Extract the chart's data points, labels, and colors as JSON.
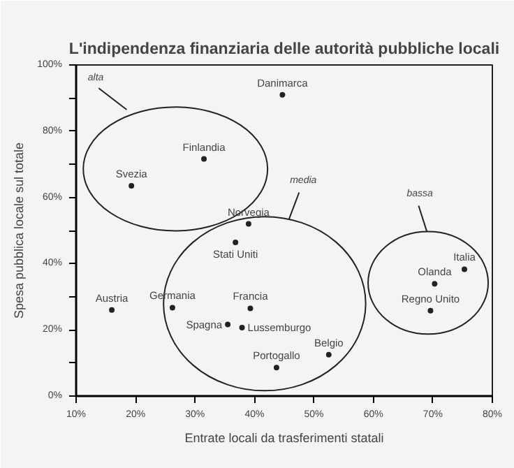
{
  "chart_data": {
    "type": "scatter",
    "title": "L'indipendenza finanziaria delle autorità pubbliche locali",
    "xlabel": "Entrate locali da trasferimenti statali",
    "ylabel": "Spesa pubblica locale sul totale",
    "x": [
      19.3,
      31.5,
      44.7,
      39.0,
      36.8,
      16.0,
      26.2,
      39.3,
      35.5,
      37.9,
      43.7,
      52.5,
      75.3,
      70.3,
      69.6
    ],
    "values": [
      63.5,
      71.6,
      91.0,
      52.0,
      46.4,
      26.0,
      26.7,
      26.5,
      21.6,
      20.7,
      8.6,
      12.5,
      38.3,
      33.9,
      25.8
    ],
    "color": "#222222",
    "marker": "circle",
    "xlim": [
      10,
      80
    ],
    "ylim": [
      0,
      100
    ],
    "xticks": [
      {
        "value": 10,
        "label": "10%"
      },
      {
        "value": 20,
        "label": "20%"
      },
      {
        "value": 30,
        "label": "30%"
      },
      {
        "value": 40,
        "label": "40%"
      },
      {
        "value": 50,
        "label": "50%"
      },
      {
        "value": 60,
        "label": "60%"
      },
      {
        "value": 70,
        "label": "70%"
      },
      {
        "value": 80,
        "label": "80%"
      }
    ],
    "yticks": [
      {
        "value": 0,
        "label": "0%"
      },
      {
        "value": 20,
        "label": "20%"
      },
      {
        "value": 40,
        "label": "40%"
      },
      {
        "value": 60,
        "label": "60%"
      },
      {
        "value": 80,
        "label": "80%"
      },
      {
        "value": 100,
        "label": "100%"
      }
    ],
    "grid": false,
    "annotations": [
      {
        "text": "Svezia",
        "x": 19.3,
        "y": 63.5
      },
      {
        "text": "Finlandia",
        "x": 31.5,
        "y": 71.6
      },
      {
        "text": "Danimarca",
        "x": 44.7,
        "y": 91.0
      },
      {
        "text": "Norvegia",
        "x": 39.0,
        "y": 52.0
      },
      {
        "text": "Stati Uniti",
        "x": 36.8,
        "y": 46.4
      },
      {
        "text": "Austria",
        "x": 16.0,
        "y": 26.0
      },
      {
        "text": "Germania",
        "x": 26.2,
        "y": 26.7
      },
      {
        "text": "Francia",
        "x": 39.3,
        "y": 26.5
      },
      {
        "text": "Spagna",
        "x": 35.5,
        "y": 21.6
      },
      {
        "text": "Lussemburgo",
        "x": 37.9,
        "y": 20.7
      },
      {
        "text": "Portogallo",
        "x": 43.7,
        "y": 8.6
      },
      {
        "text": "Belgio",
        "x": 52.5,
        "y": 12.5
      },
      {
        "text": "Italia",
        "x": 75.3,
        "y": 38.3
      },
      {
        "text": "Olanda",
        "x": 70.3,
        "y": 33.9
      },
      {
        "text": "Regno Unito",
        "x": 69.6,
        "y": 25.8
      },
      "alta",
      "media",
      "bassa"
    ]
  }
}
